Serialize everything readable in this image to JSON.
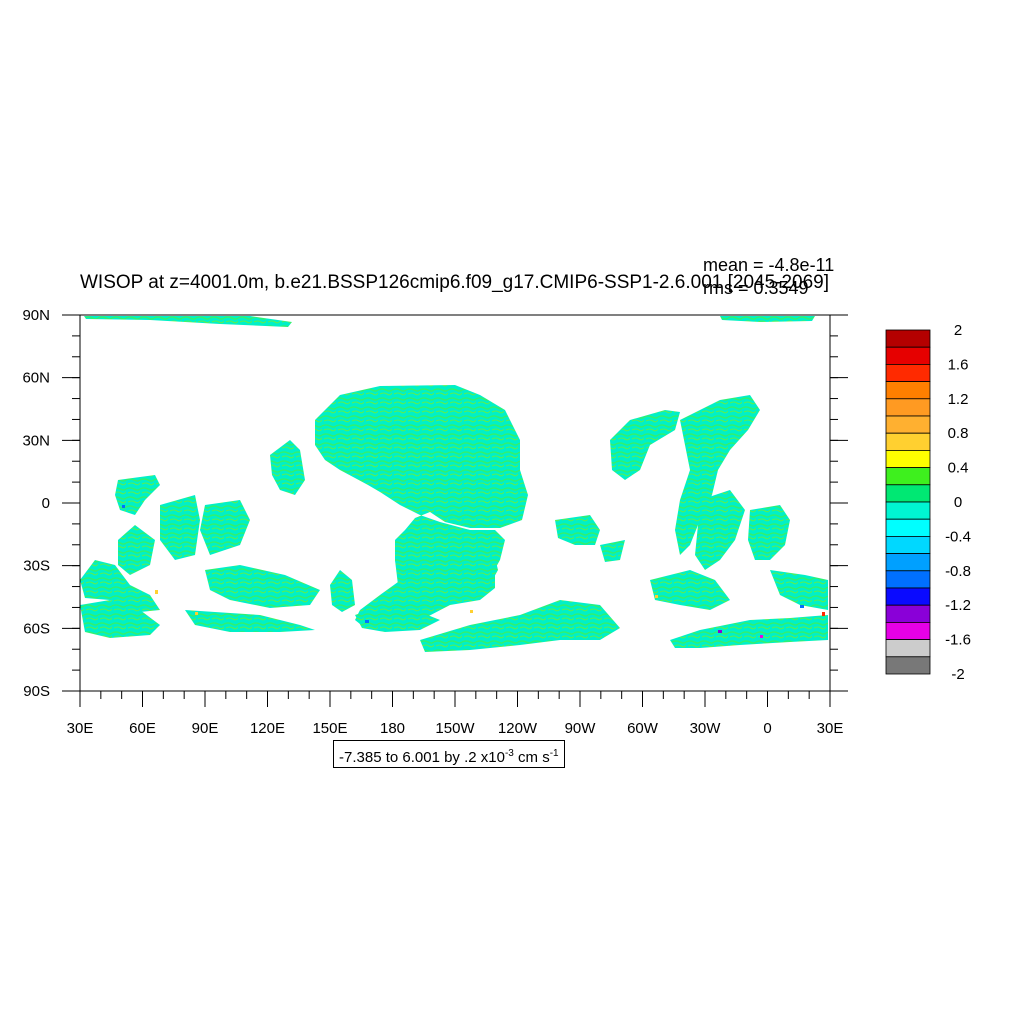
{
  "title": "WISOP at z=4001.0m, b.e21.BSSP126cmip6.f09_g17.CMIP6-SSP1-2.6.001 [2045-2069]",
  "stats": {
    "mean": "mean = -4.8e-11",
    "rms": "rms = 0.3549"
  },
  "footer": {
    "range_text": "-7.385 to 6.001 by .2 x10",
    "exp1": "-3",
    "unit": " cm s",
    "exp2": "-1"
  },
  "axes": {
    "lat_labels": [
      "90N",
      "60N",
      "30N",
      "0",
      "30S",
      "60S",
      "90S"
    ],
    "lon_labels": [
      "30E",
      "60E",
      "90E",
      "120E",
      "150E",
      "180",
      "150W",
      "120W",
      "90W",
      "60W",
      "30W",
      "0",
      "30E"
    ]
  },
  "colorbar": {
    "labels": [
      "2",
      "1.6",
      "1.2",
      "0.8",
      "0.4",
      "0",
      "-0.4",
      "-0.8",
      "-1.2",
      "-1.6",
      "-2"
    ],
    "colors": [
      "#b40000",
      "#e60000",
      "#ff2a00",
      "#ff7f00",
      "#ff9a22",
      "#ffb030",
      "#ffd030",
      "#ffff00",
      "#3ef01e",
      "#00e873",
      "#00f5d2",
      "#00ffff",
      "#00d8ff",
      "#00a0ff",
      "#0070ff",
      "#0a0aff",
      "#8a00d8",
      "#e600e6",
      "#cccccc",
      "#787878"
    ]
  },
  "map_colors": {
    "dominant": "#00f0c8",
    "secondary": "#30f070",
    "highlight_pos": "#ffd030",
    "highlight_neg": "#0070ff"
  }
}
